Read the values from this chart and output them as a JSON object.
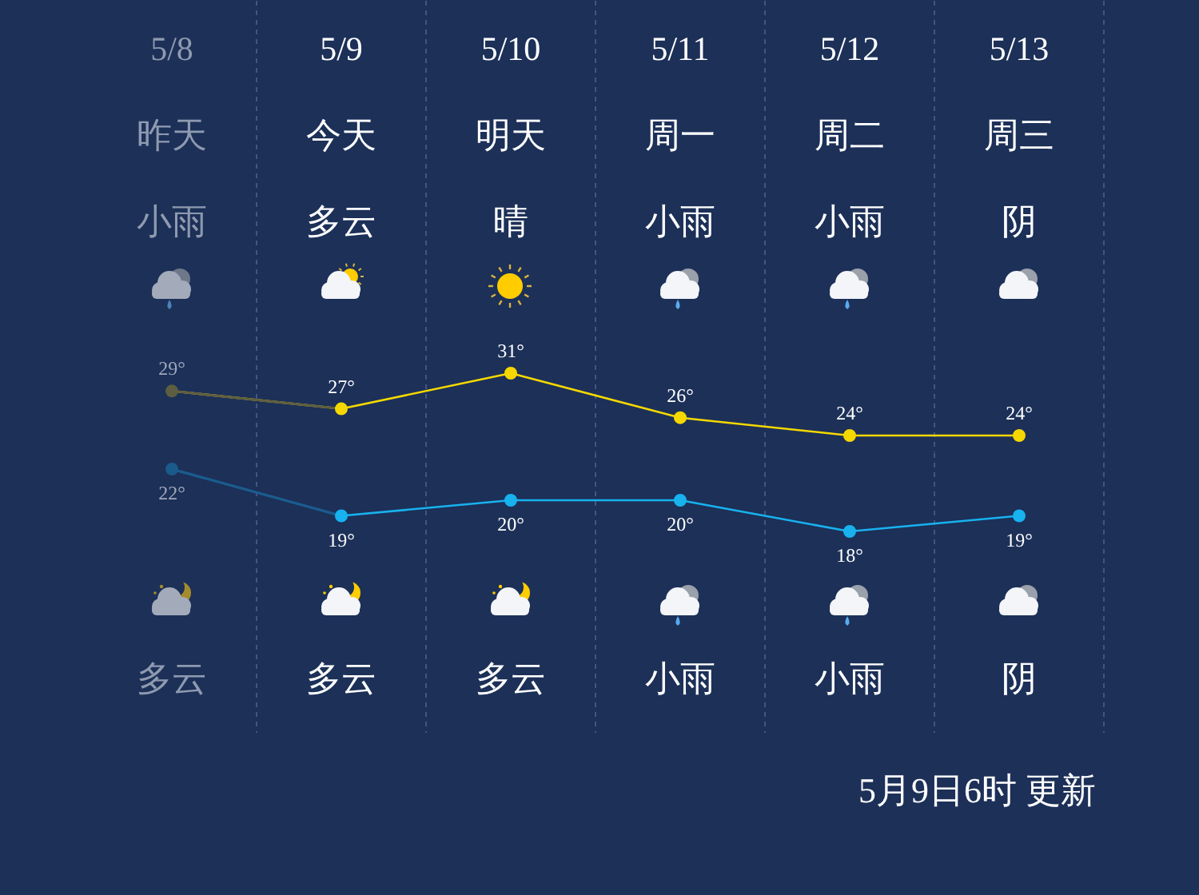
{
  "chart_data": [
    {
      "type": "line",
      "categories": [
        "5/8",
        "5/9",
        "5/10",
        "5/11",
        "5/12",
        "5/13"
      ],
      "series": [
        {
          "color": "#f5d800",
          "colors": [
            "#5e5e42",
            "#f5d800",
            "#f5d800",
            "#f5d800",
            "#f5d800",
            "#f5d800"
          ],
          "values": [
            29,
            27,
            31,
            26,
            24,
            24
          ],
          "value_labels": [
            "29°",
            "27°",
            "31°",
            "26°",
            "24°",
            "24°"
          ]
        }
      ],
      "tick_labels": "x",
      "grid": "x",
      "marker": "circle",
      "annotations": [
        "昨天",
        "今天",
        "明天",
        "周一",
        "周二",
        "周三",
        "小雨",
        "多云",
        "晴",
        "小雨",
        "小雨",
        "阴"
      ]
    },
    {
      "type": "line",
      "categories": [
        null,
        null,
        null,
        null,
        null,
        null
      ],
      "series": [
        {
          "color": "#18b2ef",
          "colors": [
            "#1b5a8c",
            "#18b2ef",
            "#18b2ef",
            "#18b2ef",
            "#18b2ef",
            "#18b2ef"
          ],
          "values": [
            22,
            19,
            20,
            20,
            18,
            19
          ],
          "value_labels": [
            "22°",
            "19°",
            "20°",
            "20°",
            "18°",
            "19°"
          ]
        }
      ],
      "tick_labels": false,
      "grid": "x",
      "marker": "circle",
      "annotations": [
        "多云",
        "多云",
        "多云",
        "小雨",
        "小雨",
        "阴",
        "5月9日6时 更新"
      ]
    }
  ]
}
